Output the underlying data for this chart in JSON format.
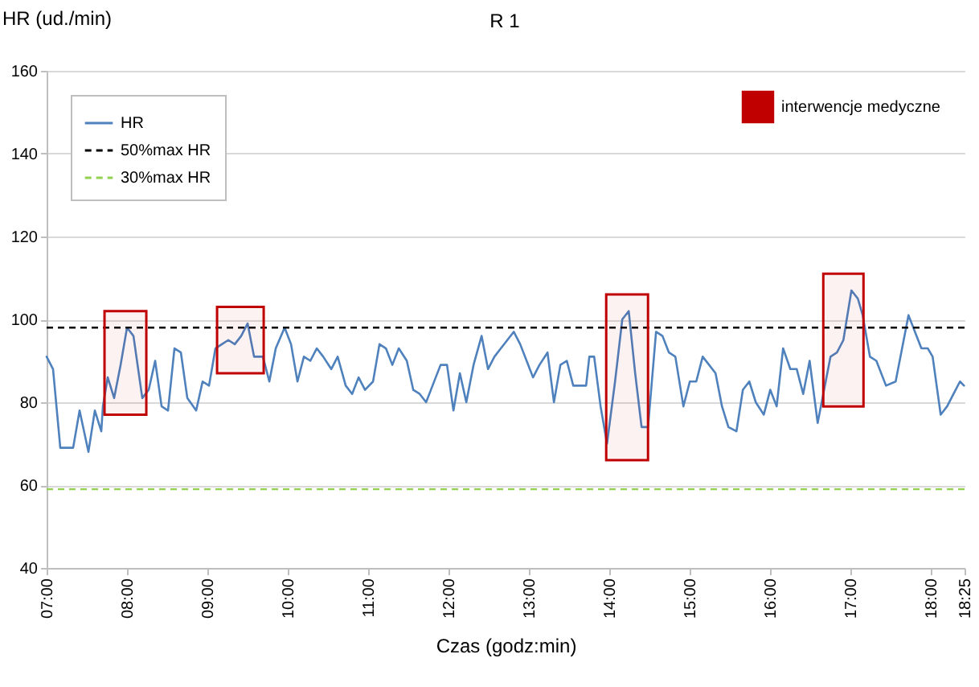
{
  "chart_data": {
    "type": "line",
    "title": "R 1",
    "xlabel": "Czas (godz:min)",
    "ylabel": "HR (ud./min)",
    "xlim": [
      7,
      18.4167
    ],
    "xticks": [
      {
        "value": 7,
        "label": "07:00"
      },
      {
        "value": 8,
        "label": "08:00"
      },
      {
        "value": 9,
        "label": "09:00"
      },
      {
        "value": 10,
        "label": "10:00"
      },
      {
        "value": 11,
        "label": "11:00"
      },
      {
        "value": 12,
        "label": "12:00"
      },
      {
        "value": 13,
        "label": "13:00"
      },
      {
        "value": 14,
        "label": "14:00"
      },
      {
        "value": 15,
        "label": "15:00"
      },
      {
        "value": 16,
        "label": "16:00"
      },
      {
        "value": 17,
        "label": "17:00"
      },
      {
        "value": 18,
        "label": "18:00"
      },
      {
        "value": 18.4167,
        "label": "18:25"
      }
    ],
    "ylim": [
      40,
      160
    ],
    "yticks": [
      40,
      60,
      80,
      100,
      120,
      140,
      160
    ],
    "grid": "y",
    "legend": "top left",
    "line_style": "solid",
    "series": [
      {
        "name": "HR",
        "color": "#4f81bd",
        "x": [
          7.0,
          7.08,
          7.17,
          7.25,
          7.33,
          7.41,
          7.52,
          7.6,
          7.68,
          7.7,
          7.76,
          7.84,
          7.92,
          8.0,
          8.08,
          8.19,
          8.27,
          8.35,
          8.43,
          8.51,
          8.59,
          8.67,
          8.75,
          8.86,
          8.94,
          9.02,
          9.1,
          9.18,
          9.26,
          9.34,
          9.42,
          9.5,
          9.58,
          9.69,
          9.77,
          9.85,
          9.96,
          10.04,
          10.12,
          10.2,
          10.28,
          10.36,
          10.44,
          10.54,
          10.62,
          10.72,
          10.8,
          10.88,
          10.96,
          11.06,
          11.14,
          11.22,
          11.3,
          11.38,
          11.48,
          11.56,
          11.64,
          11.72,
          11.8,
          11.9,
          11.98,
          12.06,
          12.14,
          12.22,
          12.31,
          12.41,
          12.49,
          12.57,
          12.65,
          12.73,
          12.81,
          12.89,
          12.97,
          13.05,
          13.13,
          13.23,
          13.31,
          13.39,
          13.47,
          13.55,
          13.63,
          13.71,
          13.75,
          13.81,
          13.89,
          13.97,
          14.07,
          14.16,
          14.24,
          14.32,
          14.4,
          14.48,
          14.58,
          14.66,
          14.74,
          14.82,
          14.92,
          15.0,
          15.08,
          15.16,
          15.24,
          15.32,
          15.4,
          15.48,
          15.58,
          15.66,
          15.74,
          15.82,
          15.92,
          16.0,
          16.08,
          16.16,
          16.25,
          16.33,
          16.41,
          16.49,
          16.59,
          16.67,
          16.75,
          16.83,
          16.91,
          17.01,
          17.09,
          17.15,
          17.24,
          17.32,
          17.44,
          17.56,
          17.64,
          17.72,
          17.8,
          17.88,
          17.96,
          18.02,
          18.12,
          18.2,
          18.28,
          18.36,
          18.41
        ],
        "values": [
          91,
          88,
          69,
          69,
          69,
          78,
          68,
          78,
          73,
          79,
          86,
          81,
          89,
          98,
          96,
          81,
          83,
          90,
          79,
          78,
          93,
          92,
          81,
          78,
          85,
          84,
          93,
          94,
          95,
          94,
          96,
          99,
          91,
          91,
          85,
          93,
          98,
          94,
          85,
          91,
          90,
          93,
          91,
          88,
          91,
          84,
          82,
          86,
          83,
          85,
          94,
          93,
          89,
          93,
          90,
          83,
          82,
          80,
          84,
          89,
          89,
          78,
          87,
          80,
          89,
          96,
          88,
          91,
          93,
          95,
          97,
          94,
          90,
          86,
          89,
          92,
          80,
          89,
          90,
          84,
          84,
          84,
          91,
          91,
          79,
          70,
          85,
          100,
          102,
          87,
          74,
          74,
          97,
          96,
          92,
          91,
          79,
          85,
          85,
          91,
          89,
          87,
          79,
          74,
          73,
          83,
          85,
          80,
          77,
          83,
          79,
          93,
          88,
          88,
          82,
          90,
          75,
          83,
          91,
          92,
          95,
          107,
          105,
          101,
          91,
          90,
          84,
          85,
          93,
          101,
          97,
          93,
          93,
          91,
          77,
          79,
          82,
          85,
          84
        ]
      }
    ],
    "ref_lines": [
      {
        "axis": "y",
        "value": 98,
        "label": "50%max HR",
        "color": "#000000",
        "line_style": "dashed"
      },
      {
        "axis": "y",
        "value": 59,
        "label": "30%max HR",
        "color": "#92d050",
        "line_style": "dashed"
      }
    ],
    "bands": [
      {
        "axis": "x",
        "from": 7.72,
        "to": 8.24,
        "label": "interwencje  medyczne",
        "color": "#c00000"
      },
      {
        "axis": "x",
        "from": 9.12,
        "to": 9.7,
        "color": "#c00000"
      },
      {
        "axis": "x",
        "from": 13.96,
        "to": 14.48,
        "color": "#c00000"
      },
      {
        "axis": "x",
        "from": 16.66,
        "to": 17.16,
        "color": "#c00000"
      }
    ]
  }
}
